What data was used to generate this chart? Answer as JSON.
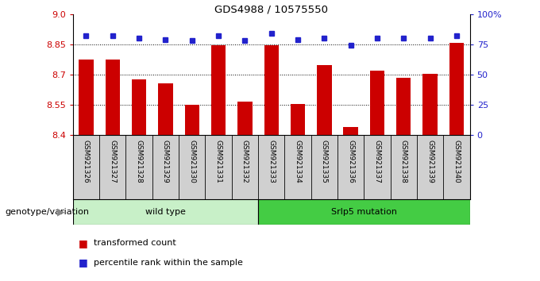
{
  "title": "GDS4988 / 10575550",
  "samples": [
    "GSM921326",
    "GSM921327",
    "GSM921328",
    "GSM921329",
    "GSM921330",
    "GSM921331",
    "GSM921332",
    "GSM921333",
    "GSM921334",
    "GSM921335",
    "GSM921336",
    "GSM921337",
    "GSM921338",
    "GSM921339",
    "GSM921340"
  ],
  "transformed_counts": [
    8.775,
    8.775,
    8.675,
    8.655,
    8.55,
    8.845,
    8.565,
    8.845,
    8.555,
    8.745,
    8.44,
    8.72,
    8.685,
    8.705,
    8.855
  ],
  "percentile_ranks": [
    82,
    82,
    80,
    79,
    78,
    82,
    78,
    84,
    79,
    80,
    74,
    80,
    80,
    80,
    82
  ],
  "ylim_left": [
    8.4,
    9.0
  ],
  "ylim_right": [
    0,
    100
  ],
  "yticks_left": [
    8.4,
    8.55,
    8.7,
    8.85,
    9.0
  ],
  "yticks_right": [
    0,
    25,
    50,
    75,
    100
  ],
  "bar_color": "#cc0000",
  "dot_color": "#2222cc",
  "plot_bg": "#ffffff",
  "label_bg": "#d0d0d0",
  "wt_color": "#c8f0c8",
  "mut_color": "#44cc44",
  "wild_type_count": 7,
  "legend_tc": "transformed count",
  "legend_pr": "percentile rank within the sample",
  "group_label": "genotype/variation",
  "group1": "wild type",
  "group2": "Srlp5 mutation",
  "hgrid_vals": [
    8.55,
    8.7,
    8.85
  ]
}
